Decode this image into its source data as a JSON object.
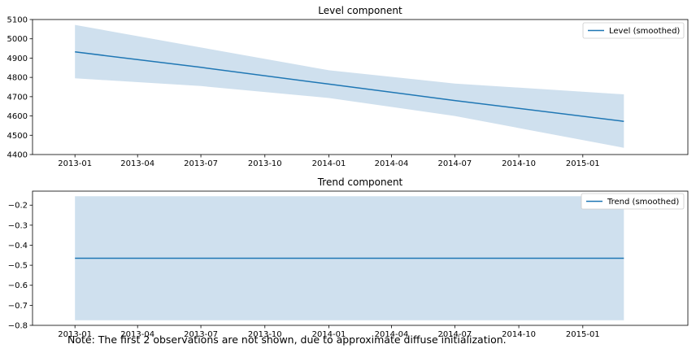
{
  "note": "Note: The first 2 observations are not shown, due to approximate diffuse initialization.",
  "colors": {
    "line": "#1f77b4",
    "band": "#cfe0ee",
    "axis": "#000000"
  },
  "chart_data": [
    {
      "type": "line",
      "title": "Level component",
      "legend_location": "top-right",
      "x_tick_labels": [
        "2013-01",
        "2013-04",
        "2013-07",
        "2013-10",
        "2014-01",
        "2014-04",
        "2014-07",
        "2014-10",
        "2015-01"
      ],
      "y_ticks": [
        4400,
        4500,
        4600,
        4700,
        4800,
        4900,
        5000,
        5100
      ],
      "ylim": [
        4400,
        5100
      ],
      "xlim": [
        "2012-11-01",
        "2015-06-01"
      ],
      "series": [
        {
          "name": "Level (smoothed)",
          "x": [
            "2013-01-01",
            "2013-07-01",
            "2014-01-01",
            "2014-07-01",
            "2015-03-01"
          ],
          "y": [
            4932,
            4852,
            4765,
            4680,
            4572
          ],
          "lower": [
            4795,
            4755,
            4693,
            4600,
            4435
          ],
          "upper": [
            5072,
            4955,
            4837,
            4768,
            4712
          ]
        }
      ]
    },
    {
      "type": "line",
      "title": "Trend component",
      "legend_location": "top-right",
      "x_tick_labels": [
        "2013-01",
        "2013-04",
        "2013-07",
        "2013-10",
        "2014-01",
        "2014-04",
        "2014-07",
        "2014-10",
        "2015-01"
      ],
      "y_ticks": [
        -0.8,
        -0.7,
        -0.6,
        -0.5,
        -0.4,
        -0.3,
        -0.2
      ],
      "y_tick_labels": [
        "−0.8",
        "−0.7",
        "−0.6",
        "−0.5",
        "−0.4",
        "−0.3",
        "−0.2"
      ],
      "ylim": [
        -0.8,
        -0.13
      ],
      "xlim": [
        "2012-11-01",
        "2015-06-01"
      ],
      "series": [
        {
          "name": "Trend (smoothed)",
          "x": [
            "2013-01-01",
            "2015-03-01"
          ],
          "y": [
            -0.465,
            -0.465
          ],
          "lower": [
            -0.775,
            -0.775
          ],
          "upper": [
            -0.155,
            -0.155
          ]
        }
      ]
    }
  ]
}
